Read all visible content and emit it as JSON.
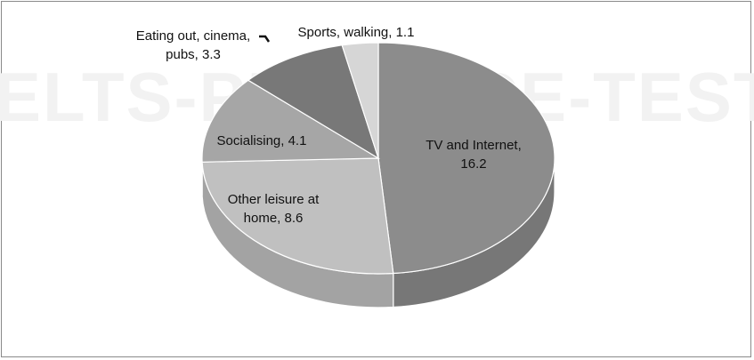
{
  "watermark": "ELTS-PRACTICE-TESTS.co",
  "colors": {
    "tv": "#8c8c8c",
    "sports": "#d6d6d6",
    "eating": "#787878",
    "social": "#a6a6a6",
    "other": "#c0c0c0",
    "edge": "#ffffff"
  },
  "chart_data": {
    "type": "pie",
    "title": "",
    "slices": [
      {
        "label": "TV and Internet",
        "value": 16.2,
        "text": [
          "TV and Internet,",
          "16.2"
        ]
      },
      {
        "label": "Other leisure at home",
        "value": 8.6,
        "text": [
          "Other leisure at",
          "home, 8.6"
        ]
      },
      {
        "label": "Socialising",
        "value": 4.1,
        "text": [
          "Socialising, 4.1"
        ]
      },
      {
        "label": "Eating out, cinema, pubs",
        "value": 3.3,
        "text": [
          "Eating out, cinema,",
          "pubs, 3.3"
        ]
      },
      {
        "label": "Sports, walking",
        "value": 1.1,
        "text": [
          "Sports, walking, 1.1"
        ]
      }
    ]
  }
}
